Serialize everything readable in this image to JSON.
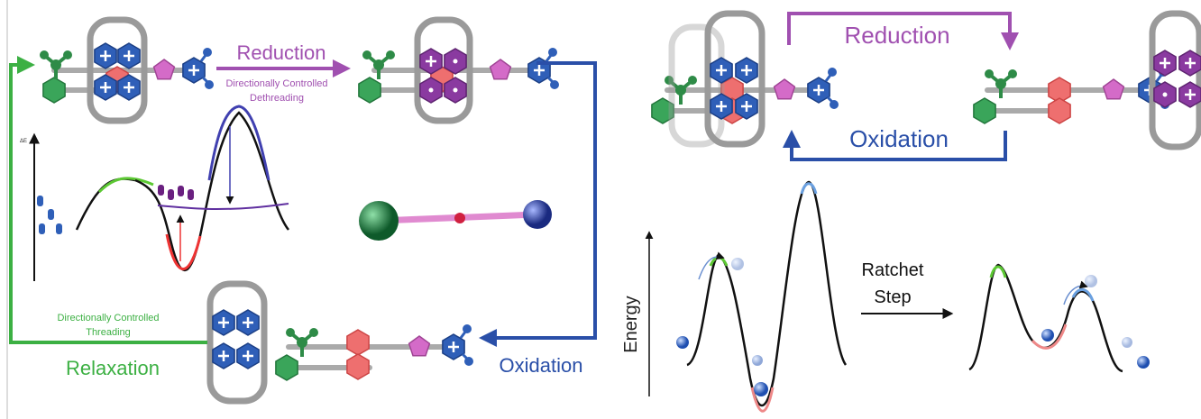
{
  "left_panel": {
    "reduction": "Reduction",
    "dethreading": [
      "Directionally Controlled",
      "Dethreading"
    ],
    "oxidation": "Oxidation",
    "relaxation": "Relaxation",
    "threading": [
      "Directionally Controlled",
      "Threading"
    ],
    "energy_axis": "ΔE"
  },
  "right_panel": {
    "reduction": "Reduction",
    "oxidation": "Oxidation",
    "energy_axis": "Energy",
    "ratchet_step": [
      "Ratchet",
      "Step"
    ]
  }
}
